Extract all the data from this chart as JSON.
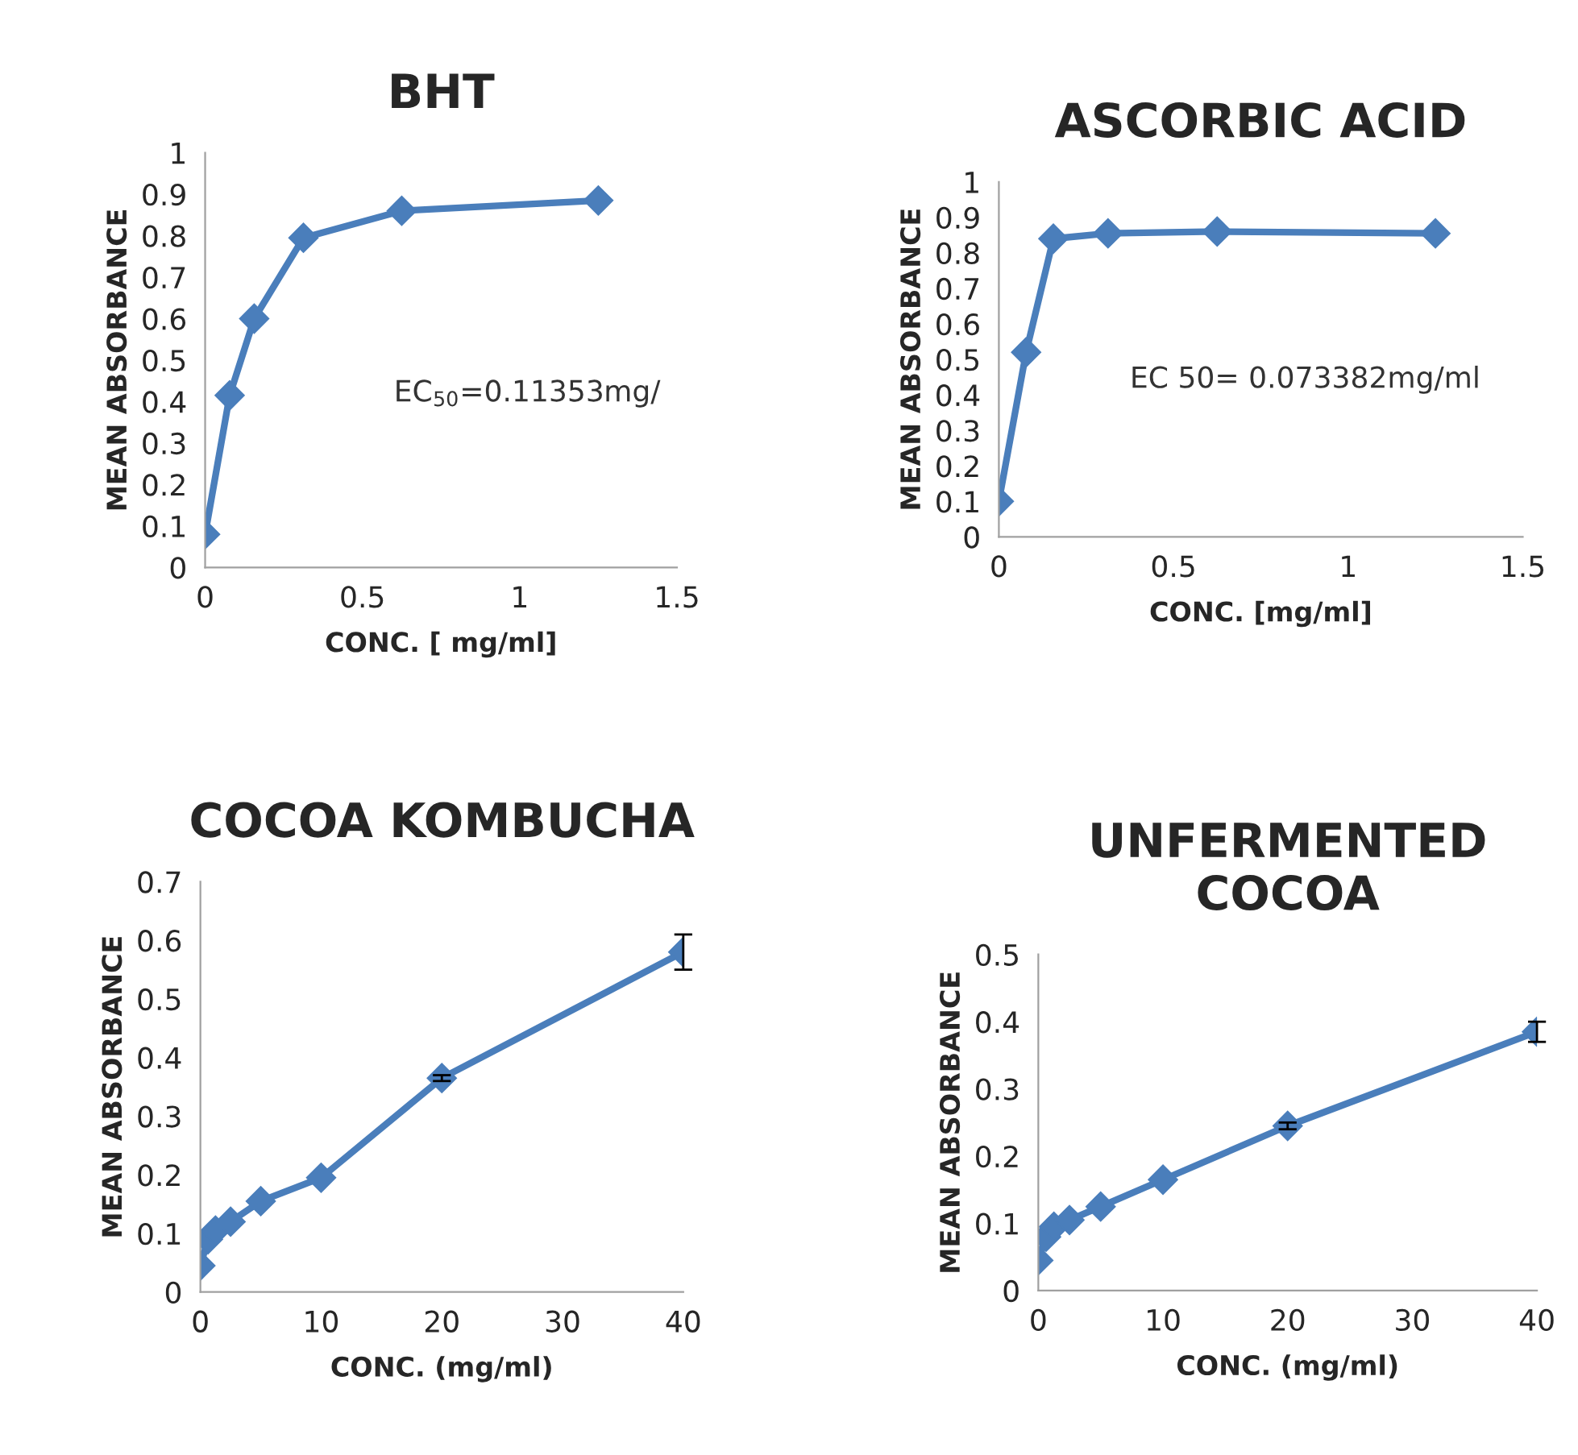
{
  "chart_data": [
    {
      "type": "line",
      "title": "BHT",
      "xlabel": "CONC. [ mg/ml]",
      "ylabel": "MEAN ABSORBANCE",
      "x": [
        0,
        0.078,
        0.156,
        0.3125,
        0.625,
        1.25
      ],
      "values": [
        0.08,
        0.415,
        0.6,
        0.795,
        0.86,
        0.885
      ],
      "color": "#4a7ebb",
      "marker": "diamond",
      "line_style": "solid",
      "xlim": [
        0,
        1.5
      ],
      "xticks": [
        0,
        0.5,
        1,
        1.5
      ],
      "ylim": [
        0,
        1
      ],
      "yticks": [
        0,
        0.1,
        0.2,
        0.3,
        0.4,
        0.5,
        0.6,
        0.7,
        0.8,
        0.9,
        1
      ],
      "grid": false,
      "legend": false,
      "annotations": [
        "EC$_{50}$=0.11353mg/"
      ]
    },
    {
      "type": "line",
      "title": "ASCORBIC ACID",
      "xlabel": "CONC. [mg/ml]",
      "ylabel": "MEAN ABSORBANCE",
      "x": [
        0,
        0.078,
        0.156,
        0.3125,
        0.625,
        1.25
      ],
      "values": [
        0.1,
        0.52,
        0.84,
        0.855,
        0.86,
        0.855
      ],
      "color": "#4a7ebb",
      "marker": "diamond",
      "line_style": "solid",
      "xlim": [
        0,
        1.5
      ],
      "xticks": [
        0,
        0.5,
        1,
        1.5
      ],
      "ylim": [
        0,
        1
      ],
      "yticks": [
        0,
        0.1,
        0.2,
        0.3,
        0.4,
        0.5,
        0.6,
        0.7,
        0.8,
        0.9,
        1
      ],
      "grid": false,
      "legend": false,
      "annotations": [
        "EC 50= 0.073382mg/ml"
      ]
    },
    {
      "type": "line",
      "title": "COCOA KOMBUCHA",
      "xlabel": "CONC. (mg/ml)",
      "ylabel": "MEAN ABSORBANCE",
      "x": [
        0,
        0.625,
        1.25,
        2.5,
        5,
        10,
        20,
        40
      ],
      "values": [
        0.045,
        0.09,
        0.105,
        0.12,
        0.155,
        0.195,
        0.365,
        0.58
      ],
      "errors": [
        null,
        null,
        null,
        null,
        null,
        null,
        0.005,
        0.03
      ],
      "color": "#4a7ebb",
      "marker": "diamond",
      "line_style": "solid",
      "xlim": [
        0,
        40
      ],
      "xticks": [
        0,
        10,
        20,
        30,
        40
      ],
      "ylim": [
        0,
        0.7
      ],
      "yticks": [
        0,
        0.1,
        0.2,
        0.3,
        0.4,
        0.5,
        0.6,
        0.7
      ],
      "grid": false,
      "legend": false
    },
    {
      "type": "line",
      "title": "UNFERMENTED\nCOCOA",
      "xlabel": "CONC. (mg/ml)",
      "ylabel": "MEAN ABSORBANCE",
      "x": [
        0,
        0.625,
        1.25,
        2.5,
        5,
        10,
        20,
        40
      ],
      "values": [
        0.045,
        0.08,
        0.095,
        0.105,
        0.125,
        0.165,
        0.245,
        0.385
      ],
      "errors": [
        null,
        null,
        null,
        null,
        null,
        null,
        0.005,
        0.015
      ],
      "color": "#4a7ebb",
      "marker": "diamond",
      "line_style": "solid",
      "xlim": [
        0,
        40
      ],
      "xticks": [
        0,
        10,
        20,
        30,
        40
      ],
      "ylim": [
        0,
        0.5
      ],
      "yticks": [
        0,
        0.1,
        0.2,
        0.3,
        0.4,
        0.5
      ],
      "grid": false,
      "legend": false
    }
  ]
}
